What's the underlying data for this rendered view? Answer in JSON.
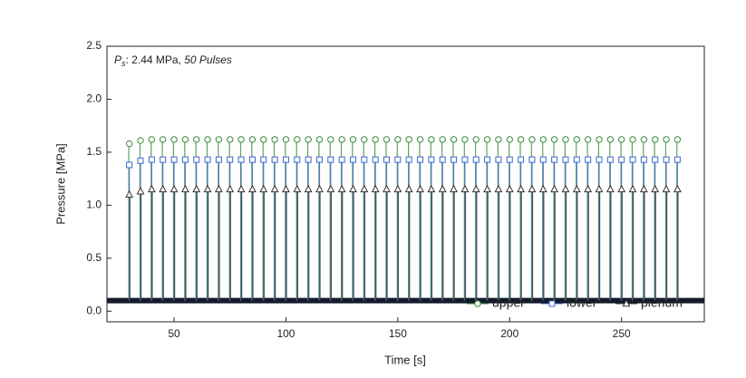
{
  "chart_data": {
    "type": "pulse",
    "annotation": {
      "symbol": "P",
      "subscript": "s",
      "text": ": 2.44 MPa, ",
      "emphasis": "50 Pulses"
    },
    "x_label": "Time [s]",
    "y_label": "Pressure [MPa]",
    "xlim": [
      20,
      287
    ],
    "ylim": [
      -0.1,
      2.5
    ],
    "xticks": [
      50,
      100,
      150,
      200,
      250
    ],
    "yticks": [
      {
        "value": 0,
        "label": "0.0"
      },
      0.5,
      {
        "value": 1,
        "label": "1.0"
      },
      1.5,
      {
        "value": 2,
        "label": "2.0"
      },
      2.5
    ],
    "baseline": 0.1,
    "legend": "upper-right",
    "x": [
      30,
      35,
      40,
      45,
      50,
      55,
      60,
      65,
      70,
      75,
      80,
      85,
      90,
      95,
      100,
      105,
      110,
      115,
      120,
      125,
      130,
      135,
      140,
      145,
      150,
      155,
      160,
      165,
      170,
      175,
      180,
      185,
      190,
      195,
      200,
      205,
      210,
      215,
      220,
      225,
      230,
      235,
      240,
      245,
      250,
      255,
      260,
      265,
      270,
      275
    ],
    "series": [
      {
        "name": "upper",
        "color": "#3a8a3a",
        "marker": "circle",
        "values": [
          1.58,
          1.61,
          1.62,
          1.62,
          1.62,
          1.62,
          1.62,
          1.62,
          1.62,
          1.62,
          1.62,
          1.62,
          1.62,
          1.62,
          1.62,
          1.62,
          1.62,
          1.62,
          1.62,
          1.62,
          1.62,
          1.62,
          1.62,
          1.62,
          1.62,
          1.62,
          1.62,
          1.62,
          1.62,
          1.62,
          1.62,
          1.62,
          1.62,
          1.62,
          1.62,
          1.62,
          1.62,
          1.62,
          1.62,
          1.62,
          1.62,
          1.62,
          1.62,
          1.62,
          1.62,
          1.62,
          1.62,
          1.62,
          1.62,
          1.62
        ]
      },
      {
        "name": "lower",
        "color": "#3c64d0",
        "marker": "square",
        "values": [
          1.38,
          1.42,
          1.43,
          1.43,
          1.43,
          1.43,
          1.43,
          1.43,
          1.43,
          1.43,
          1.43,
          1.43,
          1.43,
          1.43,
          1.43,
          1.43,
          1.43,
          1.43,
          1.43,
          1.43,
          1.43,
          1.43,
          1.43,
          1.43,
          1.43,
          1.43,
          1.43,
          1.43,
          1.43,
          1.43,
          1.43,
          1.43,
          1.43,
          1.43,
          1.43,
          1.43,
          1.43,
          1.43,
          1.43,
          1.43,
          1.43,
          1.43,
          1.43,
          1.43,
          1.43,
          1.43,
          1.43,
          1.43,
          1.43,
          1.43
        ]
      },
      {
        "name": "plenum",
        "color": "#333333",
        "marker": "triangle",
        "values": [
          1.1,
          1.13,
          1.15,
          1.15,
          1.15,
          1.15,
          1.15,
          1.15,
          1.15,
          1.15,
          1.15,
          1.15,
          1.15,
          1.15,
          1.15,
          1.15,
          1.15,
          1.15,
          1.15,
          1.15,
          1.15,
          1.15,
          1.15,
          1.15,
          1.15,
          1.15,
          1.15,
          1.15,
          1.15,
          1.15,
          1.15,
          1.15,
          1.15,
          1.15,
          1.15,
          1.15,
          1.15,
          1.15,
          1.15,
          1.15,
          1.15,
          1.15,
          1.15,
          1.15,
          1.15,
          1.15,
          1.15,
          1.15,
          1.15,
          1.15
        ]
      }
    ]
  }
}
